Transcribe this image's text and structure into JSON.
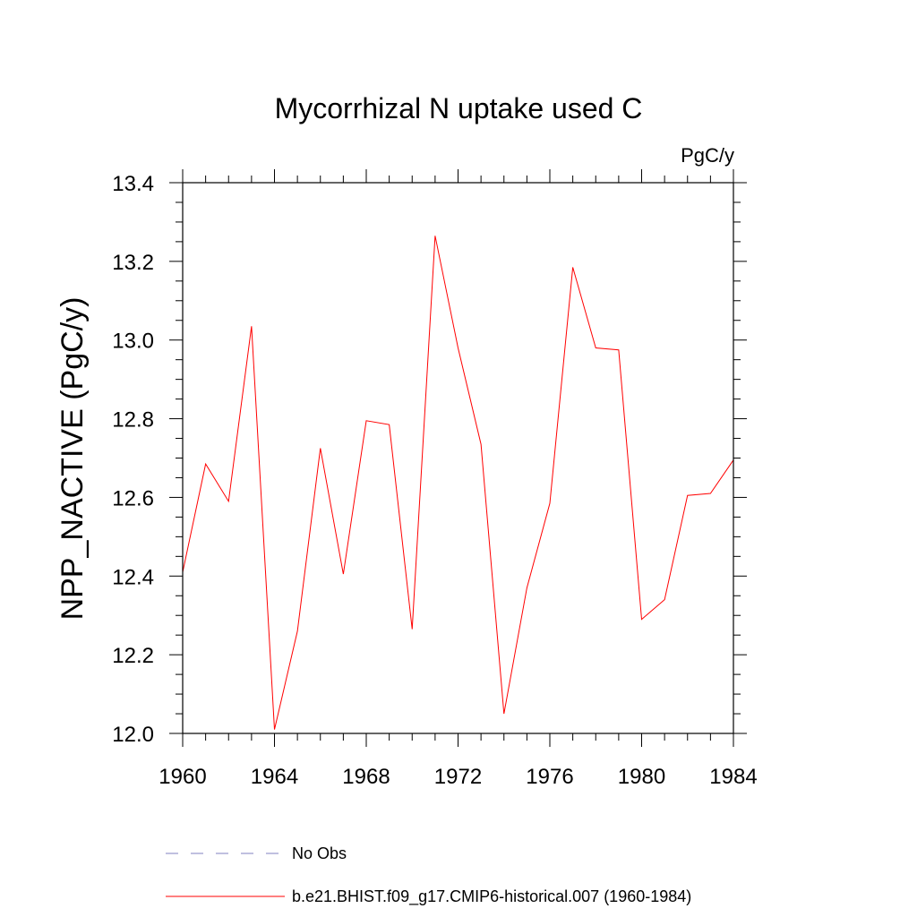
{
  "chart_data": {
    "type": "line",
    "title": "Mycorrhizal N uptake used C",
    "units_label": "PgC/y",
    "xlabel": "",
    "ylabel": "NPP_NACTIVE  (PgC/y)",
    "xlim": [
      1960,
      1984
    ],
    "ylim": [
      12.0,
      13.4
    ],
    "x_ticks": [
      "1960",
      "1964",
      "1968",
      "1972",
      "1976",
      "1980",
      "1984"
    ],
    "y_ticks": [
      "12.0",
      "12.2",
      "12.4",
      "12.6",
      "12.8",
      "13.0",
      "13.2",
      "13.4"
    ],
    "grid": false,
    "series": [
      {
        "name": "b.e21.BHIST.f09_g17.CMIP6-historical.007 (1960-1984)",
        "color": "#ff0000",
        "style": "solid",
        "x": [
          1960,
          1961,
          1962,
          1963,
          1964,
          1965,
          1966,
          1967,
          1968,
          1969,
          1970,
          1971,
          1972,
          1973,
          1974,
          1975,
          1976,
          1977,
          1978,
          1979,
          1980,
          1981,
          1982,
          1983,
          1984
        ],
        "y": [
          12.41,
          12.685,
          12.59,
          13.035,
          12.01,
          12.26,
          12.725,
          12.405,
          12.795,
          12.785,
          12.265,
          13.265,
          12.98,
          12.735,
          12.05,
          12.37,
          12.585,
          13.185,
          12.98,
          12.975,
          12.29,
          12.34,
          12.605,
          12.61,
          12.695
        ]
      }
    ],
    "legend": {
      "placement": "bottom",
      "entries": [
        {
          "label": "No Obs",
          "color": "#8080c0",
          "style": "dashed"
        },
        {
          "label": "b.e21.BHIST.f09_g17.CMIP6-historical.007 (1960-1984)",
          "color": "#ff0000",
          "style": "solid"
        }
      ]
    }
  }
}
